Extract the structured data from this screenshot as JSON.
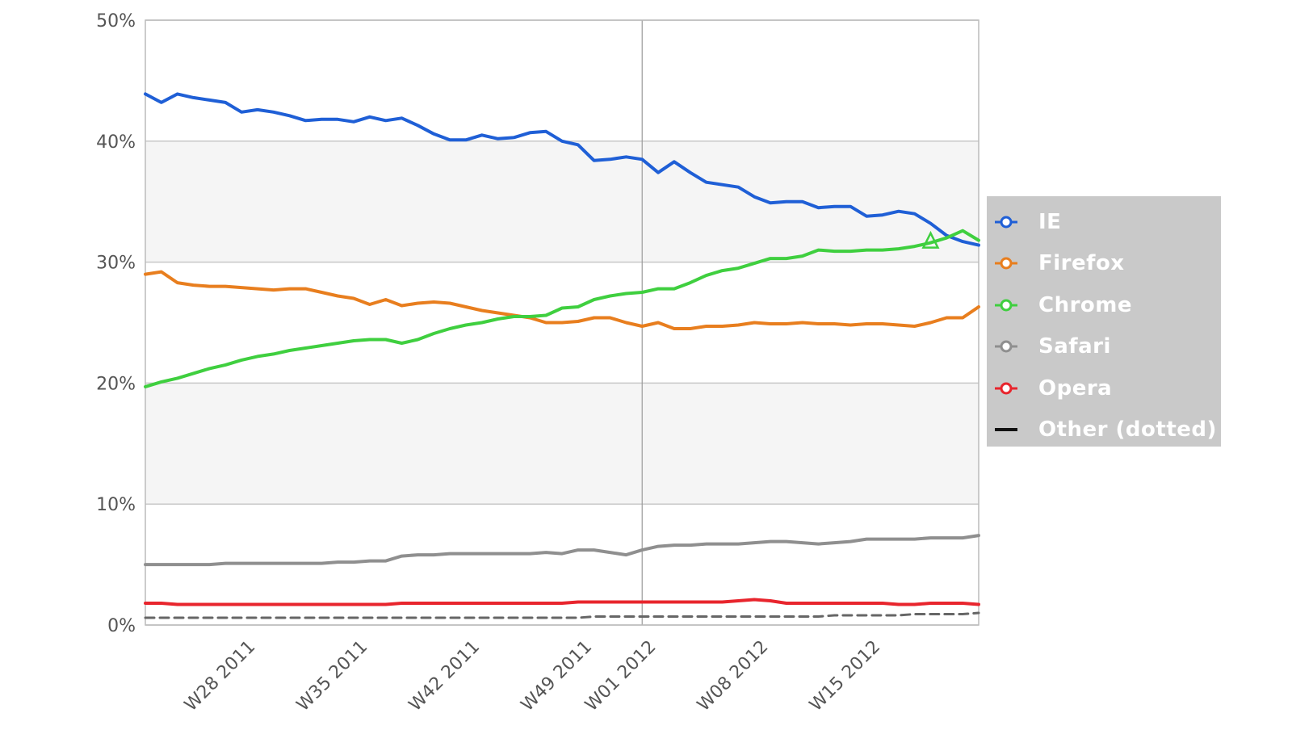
{
  "chart_data": {
    "type": "line",
    "title": "",
    "xlabel": "",
    "ylabel": "",
    "ylim": [
      0,
      50
    ],
    "y_tick_labels": [
      "0%",
      "10%",
      "20%",
      "30%",
      "40%",
      "50%"
    ],
    "y_ticks": [
      0,
      10,
      20,
      30,
      40,
      50
    ],
    "x_range": [
      0,
      52
    ],
    "x_tick_labels": [
      "W28 2011",
      "W35 2011",
      "W42 2011",
      "W49 2011",
      "W01 2012",
      "W08 2012",
      "W15 2012"
    ],
    "x_ticks": [
      6,
      13,
      20,
      27,
      31,
      38,
      45
    ],
    "x_week_start": "W22 2011",
    "vertical_marker_x": 31,
    "grid": true,
    "shaded_bands": [
      [
        10,
        20
      ],
      [
        30,
        40
      ]
    ],
    "legend_position": "right",
    "series": [
      {
        "name": "IE",
        "color": "#1f5fd6",
        "style": "solid",
        "values": [
          43.9,
          43.2,
          43.9,
          43.6,
          43.4,
          43.2,
          42.4,
          42.6,
          42.4,
          42.1,
          41.7,
          41.8,
          41.8,
          41.6,
          42.0,
          41.7,
          41.9,
          41.3,
          40.6,
          40.1,
          40.1,
          40.5,
          40.2,
          40.3,
          40.7,
          40.8,
          40.0,
          39.7,
          38.4,
          38.5,
          38.7,
          38.5,
          37.4,
          38.3,
          37.4,
          36.6,
          36.4,
          36.2,
          35.4,
          34.9,
          35.0,
          35.0,
          34.5,
          34.6,
          34.6,
          33.8,
          33.9,
          34.2,
          34.0,
          33.2,
          32.2,
          31.7,
          31.4
        ]
      },
      {
        "name": "Firefox",
        "color": "#e87e1e",
        "style": "solid",
        "values": [
          29.0,
          29.2,
          28.3,
          28.1,
          28.0,
          28.0,
          27.9,
          27.8,
          27.7,
          27.8,
          27.8,
          27.5,
          27.2,
          27.0,
          26.5,
          26.9,
          26.4,
          26.6,
          26.7,
          26.6,
          26.3,
          26.0,
          25.8,
          25.6,
          25.4,
          25.0,
          25.0,
          25.1,
          25.4,
          25.4,
          25.0,
          24.7,
          25.0,
          24.5,
          24.5,
          24.7,
          24.7,
          24.8,
          25.0,
          24.9,
          24.9,
          25.0,
          24.9,
          24.9,
          24.8,
          24.9,
          24.9,
          24.8,
          24.7,
          25.0,
          25.4,
          25.4,
          26.3
        ]
      },
      {
        "name": "Chrome",
        "color": "#3fcf3f",
        "style": "solid",
        "values": [
          19.7,
          20.1,
          20.4,
          20.8,
          21.2,
          21.5,
          21.9,
          22.2,
          22.4,
          22.7,
          22.9,
          23.1,
          23.3,
          23.5,
          23.6,
          23.6,
          23.3,
          23.6,
          24.1,
          24.5,
          24.8,
          25.0,
          25.3,
          25.5,
          25.5,
          25.6,
          26.2,
          26.3,
          26.9,
          27.2,
          27.4,
          27.5,
          27.8,
          27.8,
          28.3,
          28.9,
          29.3,
          29.5,
          29.9,
          30.3,
          30.3,
          30.5,
          31.0,
          30.9,
          30.9,
          31.0,
          31.0,
          31.1,
          31.3,
          31.6,
          32.0,
          32.6,
          31.8
        ]
      },
      {
        "name": "Safari",
        "color": "#8f8f8f",
        "style": "solid",
        "values": [
          5.0,
          5.0,
          5.0,
          5.0,
          5.0,
          5.1,
          5.1,
          5.1,
          5.1,
          5.1,
          5.1,
          5.1,
          5.2,
          5.2,
          5.3,
          5.3,
          5.7,
          5.8,
          5.8,
          5.9,
          5.9,
          5.9,
          5.9,
          5.9,
          5.9,
          6.0,
          5.9,
          6.2,
          6.2,
          6.0,
          5.8,
          6.2,
          6.5,
          6.6,
          6.6,
          6.7,
          6.7,
          6.7,
          6.8,
          6.9,
          6.9,
          6.8,
          6.7,
          6.8,
          6.9,
          7.1,
          7.1,
          7.1,
          7.1,
          7.2,
          7.2,
          7.2,
          7.4
        ]
      },
      {
        "name": "Opera",
        "color": "#e8252d",
        "style": "solid",
        "values": [
          1.8,
          1.8,
          1.7,
          1.7,
          1.7,
          1.7,
          1.7,
          1.7,
          1.7,
          1.7,
          1.7,
          1.7,
          1.7,
          1.7,
          1.7,
          1.7,
          1.8,
          1.8,
          1.8,
          1.8,
          1.8,
          1.8,
          1.8,
          1.8,
          1.8,
          1.8,
          1.8,
          1.9,
          1.9,
          1.9,
          1.9,
          1.9,
          1.9,
          1.9,
          1.9,
          1.9,
          1.9,
          2.0,
          2.1,
          2.0,
          1.8,
          1.8,
          1.8,
          1.8,
          1.8,
          1.8,
          1.8,
          1.7,
          1.7,
          1.8,
          1.8,
          1.8,
          1.7
        ]
      },
      {
        "name": "Other (dotted)",
        "color": "#666666",
        "style": "dashed",
        "values": [
          0.6,
          0.6,
          0.6,
          0.6,
          0.6,
          0.6,
          0.6,
          0.6,
          0.6,
          0.6,
          0.6,
          0.6,
          0.6,
          0.6,
          0.6,
          0.6,
          0.6,
          0.6,
          0.6,
          0.6,
          0.6,
          0.6,
          0.6,
          0.6,
          0.6,
          0.6,
          0.6,
          0.6,
          0.7,
          0.7,
          0.7,
          0.7,
          0.7,
          0.7,
          0.7,
          0.7,
          0.7,
          0.7,
          0.7,
          0.7,
          0.7,
          0.7,
          0.7,
          0.8,
          0.8,
          0.8,
          0.8,
          0.8,
          0.9,
          0.9,
          0.9,
          0.9,
          1.0
        ]
      }
    ]
  }
}
